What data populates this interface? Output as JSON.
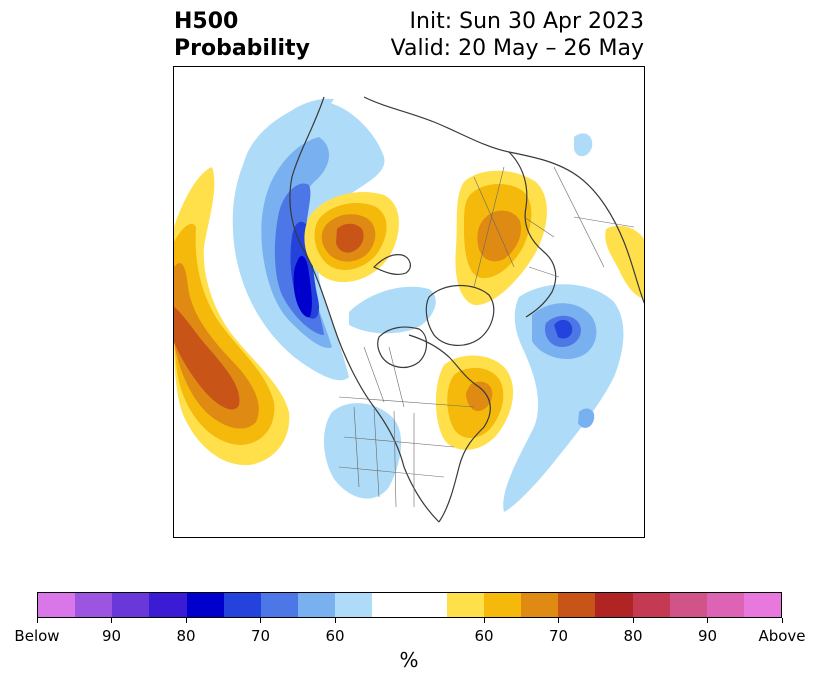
{
  "title": {
    "line1": "H500",
    "line2": "Probability",
    "init": "Init: Sun 30 Apr 2023",
    "valid": "Valid: 20 May – 26 May"
  },
  "colorbar": {
    "unit_label": "%",
    "colors": [
      "#d977e8",
      "#9b55e0",
      "#6a38d8",
      "#3b1bd4",
      "#0000cc",
      "#2442dc",
      "#4d77e6",
      "#78b0f0",
      "#aedcf8",
      "#ffffff",
      "#ffffff",
      "#ffe04a",
      "#f4b90a",
      "#df8a12",
      "#c95418",
      "#b02424",
      "#c43a52",
      "#d05488",
      "#dd64b4",
      "#e878de"
    ],
    "tick_labels": [
      "Below",
      "90",
      "80",
      "70",
      "60",
      "60",
      "70",
      "80",
      "90",
      "Above"
    ]
  },
  "map": {
    "legend_colors": {
      "below_60": "#aedcf8",
      "below_70": "#78b0f0",
      "below_80": "#4d77e6",
      "below_85": "#2442dc",
      "below_90": "#0000cc",
      "above_60": "#ffe04a",
      "above_65": "#f4b90a",
      "above_70": "#df8a12",
      "above_75": "#c95418",
      "coastline": "#3a3a3a"
    }
  }
}
